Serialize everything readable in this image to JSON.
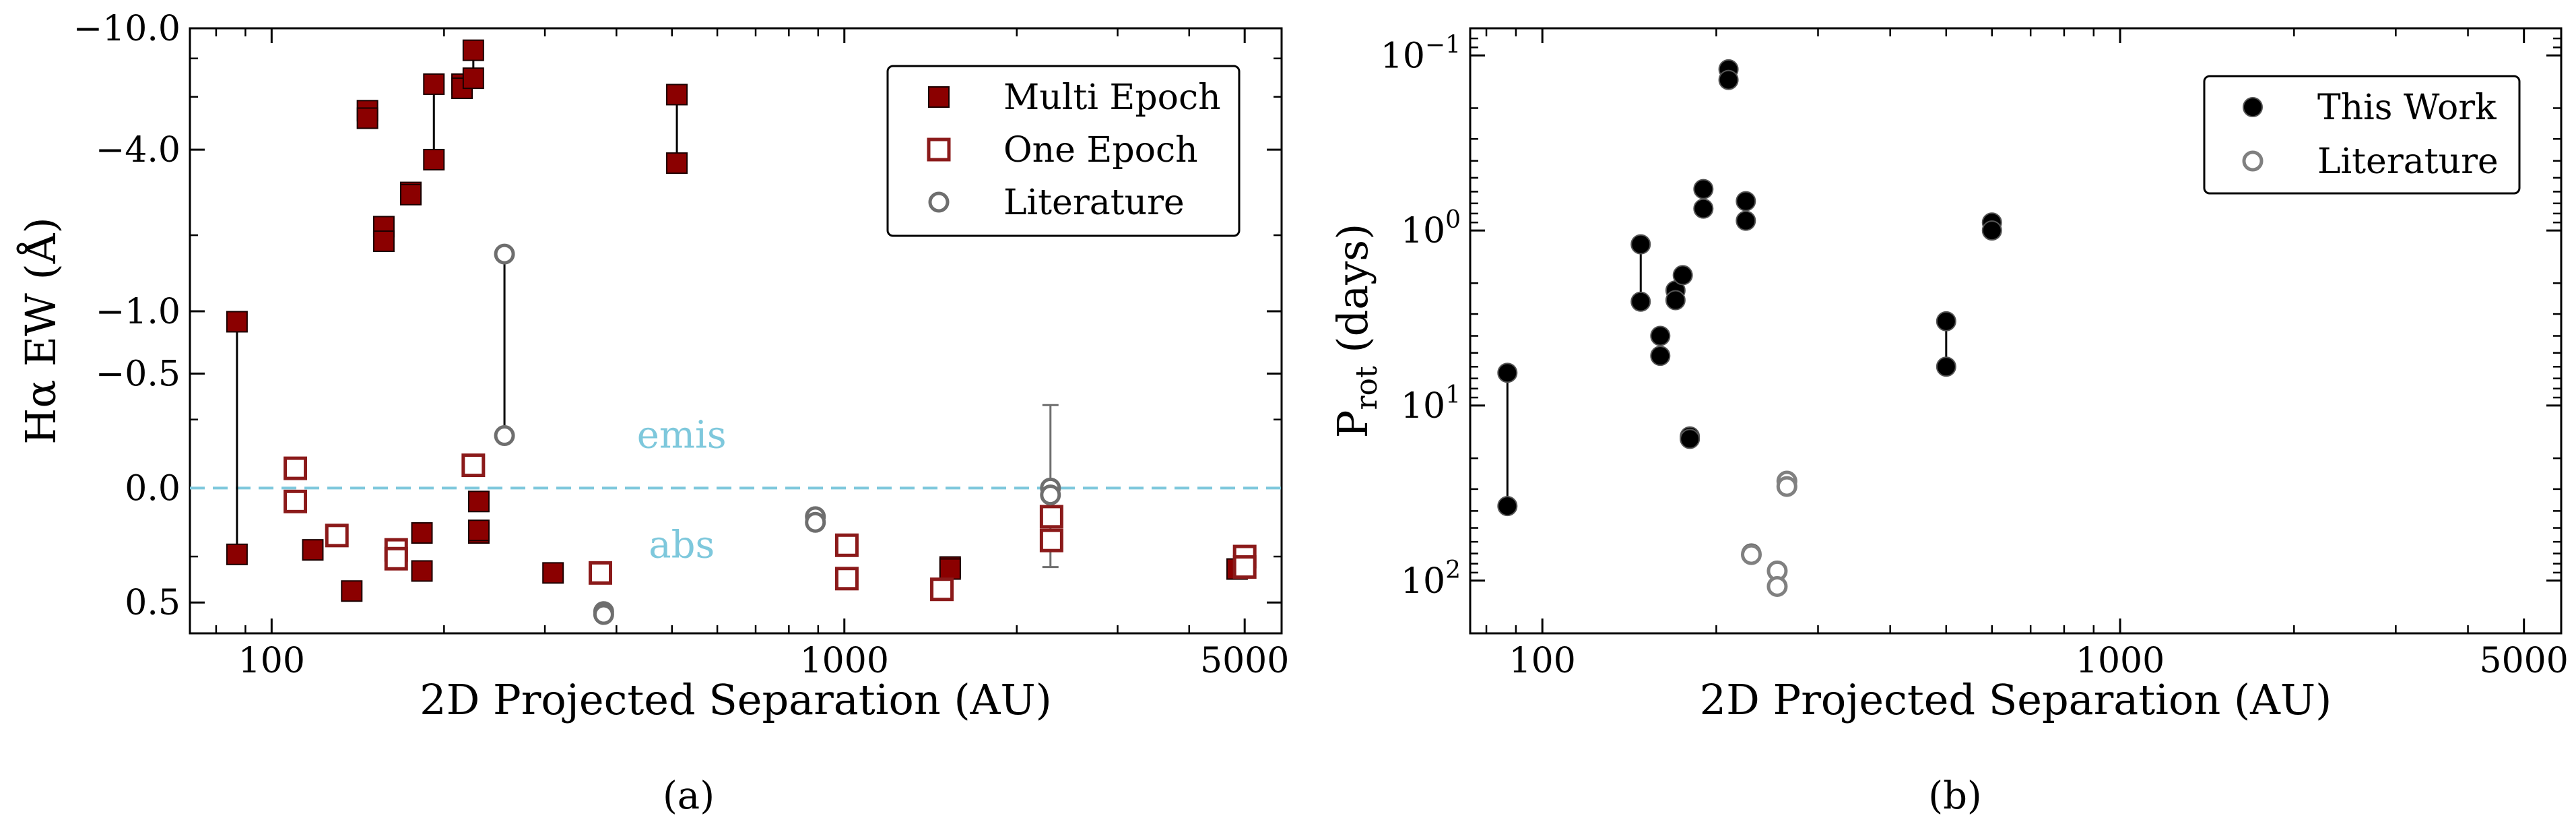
{
  "colors": {
    "multi": "#8b0000",
    "one_edge": "#8b1a1a",
    "lit": "#6e6e6e",
    "this_work": "#000000",
    "dash": "#7ec8dc"
  },
  "chart_data": [
    {
      "type": "scatter",
      "panel_label": "(a)",
      "xlabel": "2D Projected Separation (AU)",
      "ylabel": "Hα EW (Å)",
      "xscale": "log",
      "xlim": [
        72,
        5800
      ],
      "yscale": "symlog-inverted",
      "ylim_top": -10.0,
      "ylim_bottom": 0.72,
      "xticks": [
        {
          "value": 100,
          "label": "100"
        },
        {
          "value": 1000,
          "label": "1000"
        },
        {
          "value": 5000,
          "label": "5000"
        }
      ],
      "yticks": [
        {
          "value": -10.0,
          "label": "−10.0"
        },
        {
          "value": -4.0,
          "label": "−4.0"
        },
        {
          "value": -1.0,
          "label": "−1.0"
        },
        {
          "value": -0.5,
          "label": "−0.5"
        },
        {
          "value": 0.0,
          "label": "0.0"
        },
        {
          "value": 0.5,
          "label": "0.5"
        }
      ],
      "hline": 0.0,
      "annotations": [
        {
          "text": "emis",
          "x": 520,
          "y": -0.18
        },
        {
          "text": "abs",
          "x": 520,
          "y": 0.2
        }
      ],
      "legend": {
        "position": "top-right",
        "entries": [
          {
            "label": "Multi Epoch",
            "marker": "square-filled"
          },
          {
            "label": "One Epoch",
            "marker": "square-open"
          },
          {
            "label": "Literature",
            "marker": "circle-open"
          }
        ]
      },
      "series": [
        {
          "name": "Multi Epoch",
          "points": [
            [
              87,
              -0.9
            ],
            [
              87,
              0.24
            ],
            [
              118,
              0.22
            ],
            [
              138,
              0.43
            ],
            [
              147,
              -5.4
            ],
            [
              147,
              -5.1
            ],
            [
              157,
              -2.15
            ],
            [
              157,
              -1.9
            ],
            [
              175,
              -2.85
            ],
            [
              175,
              -2.8
            ],
            [
              183,
              0.15
            ],
            [
              183,
              0.32
            ],
            [
              192,
              -6.6
            ],
            [
              192,
              -3.7
            ],
            [
              215,
              -6.6
            ],
            [
              215,
              -6.4
            ],
            [
              225,
              -8.5
            ],
            [
              225,
              -6.9
            ],
            [
              230,
              0.04
            ],
            [
              230,
              0.15
            ],
            [
              230,
              0.14
            ],
            [
              310,
              0.33
            ],
            [
              510,
              -6.1
            ],
            [
              510,
              -3.6
            ],
            [
              1530,
              0.3
            ],
            [
              1530,
              0.31
            ],
            [
              4850,
              0.31
            ]
          ],
          "links": [
            [
              [
                87,
                -0.9
              ],
              [
                87,
                0.24
              ]
            ],
            [
              [
                192,
                -6.6
              ],
              [
                192,
                -3.7
              ]
            ],
            [
              [
                225,
                -8.5
              ],
              [
                225,
                -6.9
              ]
            ],
            [
              [
                510,
                -6.1
              ],
              [
                510,
                -3.6
              ]
            ]
          ]
        },
        {
          "name": "One Epoch",
          "points": [
            [
              110,
              -0.06
            ],
            [
              110,
              0.04
            ],
            [
              130,
              0.16
            ],
            [
              165,
              0.22
            ],
            [
              165,
              0.26
            ],
            [
              225,
              -0.07
            ],
            [
              375,
              0.33
            ],
            [
              1010,
              0.2
            ],
            [
              1010,
              0.36
            ],
            [
              1480,
              0.42
            ],
            [
              2300,
              0.09
            ],
            [
              2300,
              0.18
            ],
            [
              5000,
              0.25
            ],
            [
              5000,
              0.3
            ]
          ]
        },
        {
          "name": "Literature",
          "points": [
            [
              255,
              -1.7
            ],
            [
              255,
              -0.18
            ],
            [
              380,
              0.56
            ],
            [
              380,
              0.58
            ],
            [
              890,
              0.09
            ],
            [
              890,
              0.11
            ],
            [
              2290,
              0.0
            ],
            [
              2290,
              0.02
            ]
          ],
          "links": [
            [
              [
                255,
                -1.7
              ],
              [
                255,
                -0.18
              ]
            ]
          ],
          "errorbars": [
            {
              "x": 2290,
              "y": 0.0,
              "low": -0.32,
              "high": 0.3
            }
          ]
        }
      ]
    },
    {
      "type": "scatter",
      "panel_label": "(b)",
      "xlabel": "2D Projected Separation (AU)",
      "ylabel": "P_rot (days)",
      "xscale": "log",
      "xlim": [
        75,
        5800
      ],
      "yscale": "log-inverted",
      "ylim": [
        0.07,
        200
      ],
      "xticks": [
        {
          "value": 100,
          "label": "100"
        },
        {
          "value": 1000,
          "label": "1000"
        },
        {
          "value": 5000,
          "label": "5000"
        }
      ],
      "yticks": [
        {
          "value": 0.1,
          "mant": "10",
          "exp": "−1"
        },
        {
          "value": 1,
          "mant": "10",
          "exp": "0"
        },
        {
          "value": 10,
          "mant": "10",
          "exp": "1"
        },
        {
          "value": 100,
          "mant": "10",
          "exp": "2"
        }
      ],
      "legend": {
        "position": "top-right",
        "entries": [
          {
            "label": "This Work",
            "marker": "circle-filled"
          },
          {
            "label": "Literature",
            "marker": "circle-open"
          }
        ]
      },
      "series": [
        {
          "name": "This Work",
          "points": [
            [
              87,
              6.5
            ],
            [
              87,
              37.5
            ],
            [
              148,
              1.2
            ],
            [
              148,
              2.55
            ],
            [
              160,
              4.0
            ],
            [
              160,
              5.2
            ],
            [
              170,
              2.2
            ],
            [
              170,
              2.5
            ],
            [
              175,
              1.8
            ],
            [
              180,
              15.0
            ],
            [
              180,
              15.5
            ],
            [
              190,
              0.58
            ],
            [
              190,
              0.75
            ],
            [
              210,
              0.12
            ],
            [
              210,
              0.138
            ],
            [
              225,
              0.68
            ],
            [
              225,
              0.88
            ],
            [
              230,
              70.0
            ],
            [
              500,
              3.3
            ],
            [
              500,
              6.0
            ],
            [
              600,
              0.9
            ],
            [
              600,
              1.0
            ]
          ],
          "links": [
            [
              [
                87,
                6.5
              ],
              [
                87,
                37.5
              ]
            ],
            [
              [
                148,
                1.2
              ],
              [
                148,
                2.55
              ]
            ],
            [
              [
                500,
                3.3
              ],
              [
                500,
                6.0
              ]
            ]
          ]
        },
        {
          "name": "Literature",
          "points": [
            [
              230,
              71.0
            ],
            [
              255,
              88.0
            ],
            [
              255,
              108.0
            ],
            [
              265,
              27.0
            ],
            [
              265,
              29.0
            ]
          ]
        }
      ]
    }
  ]
}
